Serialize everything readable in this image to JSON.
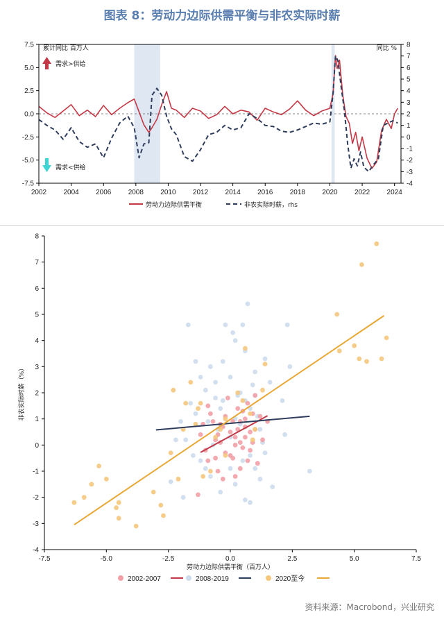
{
  "figure_title": "图表 8：劳动力边际供需平衡与非农实际时薪",
  "source": "资料来源：Macrobond，兴业研究",
  "colors": {
    "labor_balance": "#c43846",
    "real_wage": "#2f3d5c",
    "recession_shade": "#dfe7f3",
    "arrow_up": "#c43846",
    "arrow_down": "#3fd4d4",
    "s2002": "#f2a0a6",
    "s2008": "#cddcec",
    "s2020": "#f4c77c",
    "fit2002": "#c03848",
    "fit2008": "#2f3d5c",
    "fit2020": "#e8a838"
  },
  "chart_data": [
    {
      "type": "line",
      "left_axis_title": "累计同比 百万人",
      "right_axis_title": "同比 %",
      "annotation_up": "需求>供给",
      "annotation_down": "需求<供给",
      "ylim_left": [
        -7.5,
        7.5
      ],
      "yticks_left": [
        7.5,
        5.0,
        2.5,
        0.0,
        -2.5,
        -5.0,
        -7.5
      ],
      "ylim_right": [
        -4,
        8
      ],
      "yticks_right": [
        8,
        7,
        6,
        5,
        4,
        3,
        2,
        1,
        0,
        -1,
        -2,
        -3,
        -4
      ],
      "xlim": [
        2002,
        2024.4
      ],
      "xticks": [
        2002,
        2004,
        2006,
        2008,
        2010,
        2012,
        2014,
        2016,
        2018,
        2020,
        2022,
        2024
      ],
      "grid": false,
      "legend_position": "bottom",
      "shaded_periods": [
        [
          2007.9,
          2009.5
        ],
        [
          2020.1,
          2020.3
        ]
      ],
      "series": [
        {
          "name": "劳动力边际供需平衡",
          "axis": "left",
          "style": "solid",
          "x": [
            2002.0,
            2002.5,
            2003.0,
            2003.5,
            2004.0,
            2004.5,
            2005.0,
            2005.5,
            2006.0,
            2006.5,
            2007.0,
            2007.5,
            2007.9,
            2008.2,
            2008.5,
            2008.8,
            2009.0,
            2009.3,
            2009.6,
            2009.9,
            2010.2,
            2010.5,
            2011.0,
            2011.5,
            2012.0,
            2012.5,
            2013.0,
            2013.5,
            2014.0,
            2014.5,
            2015.0,
            2015.5,
            2016.0,
            2016.5,
            2017.0,
            2017.5,
            2018.0,
            2018.5,
            2019.0,
            2019.5,
            2020.0,
            2020.2,
            2020.35,
            2020.45,
            2020.6,
            2020.8,
            2021.0,
            2021.2,
            2021.4,
            2021.6,
            2021.8,
            2022.0,
            2022.3,
            2022.6,
            2022.9,
            2023.2,
            2023.5,
            2023.8,
            2024.0,
            2024.2
          ],
          "y": [
            0.8,
            0.1,
            -0.4,
            0.3,
            1.0,
            -0.2,
            0.4,
            -0.3,
            0.9,
            -0.1,
            0.6,
            1.2,
            1.6,
            0.2,
            -1.2,
            -2.0,
            -1.5,
            -0.6,
            1.0,
            2.4,
            0.6,
            0.4,
            -0.4,
            0.6,
            0.3,
            -0.5,
            -0.1,
            0.8,
            0.0,
            0.4,
            0.2,
            -0.7,
            0.6,
            0.2,
            -0.1,
            0.5,
            1.4,
            0.4,
            -0.2,
            0.3,
            0.6,
            2.2,
            6.3,
            4.9,
            5.8,
            2.0,
            -0.3,
            -1.0,
            -3.2,
            -2.0,
            -4.0,
            -2.5,
            -4.8,
            -5.9,
            -5.2,
            -1.8,
            -0.6,
            -1.6,
            0.0,
            0.6
          ]
        },
        {
          "name": "非农实际时薪，rhs",
          "axis": "right",
          "style": "dashed",
          "x": [
            2002.0,
            2002.5,
            2003.0,
            2003.5,
            2004.0,
            2004.5,
            2005.0,
            2005.5,
            2006.0,
            2006.5,
            2007.0,
            2007.5,
            2007.9,
            2008.2,
            2008.5,
            2008.8,
            2009.0,
            2009.3,
            2009.6,
            2009.9,
            2010.2,
            2010.5,
            2011.0,
            2011.5,
            2012.0,
            2012.5,
            2013.0,
            2013.5,
            2014.0,
            2014.5,
            2015.0,
            2015.5,
            2016.0,
            2016.5,
            2017.0,
            2017.5,
            2018.0,
            2018.5,
            2019.0,
            2019.5,
            2020.0,
            2020.2,
            2020.35,
            2020.5,
            2020.7,
            2020.9,
            2021.1,
            2021.3,
            2021.5,
            2021.7,
            2021.9,
            2022.1,
            2022.4,
            2022.7,
            2023.0,
            2023.3,
            2023.6,
            2023.9,
            2024.2
          ],
          "y": [
            1.5,
            1.0,
            0.6,
            -0.2,
            0.8,
            -0.4,
            -0.9,
            -0.6,
            -1.8,
            -0.1,
            1.2,
            1.8,
            0.8,
            -1.8,
            -0.6,
            -0.5,
            3.6,
            4.2,
            3.6,
            1.8,
            0.7,
            0.2,
            -1.7,
            -2.1,
            -1.1,
            0.2,
            0.4,
            1.0,
            0.6,
            0.8,
            2.0,
            1.6,
            1.0,
            0.9,
            0.5,
            0.4,
            0.6,
            0.9,
            1.2,
            1.1,
            1.3,
            3.8,
            7.0,
            6.6,
            4.3,
            2.3,
            -0.6,
            -2.7,
            -1.9,
            -2.5,
            -1.3,
            -2.6,
            -3.0,
            -2.4,
            -1.9,
            1.0,
            1.2,
            1.4,
            1.2
          ]
        }
      ]
    },
    {
      "type": "scatter",
      "xlabel": "劳动力边际供需平衡（百万人）",
      "ylabel": "非农实际时薪（%）",
      "xlim": [
        -7.5,
        7.5
      ],
      "ylim": [
        -4,
        8
      ],
      "xticks": [
        -7.5,
        -5.0,
        -2.5,
        0.0,
        2.5,
        5.0,
        7.5
      ],
      "yticks": [
        -4,
        -3,
        -2,
        -1,
        0,
        1,
        2,
        3,
        4,
        5,
        6,
        7,
        8
      ],
      "grid": false,
      "legend_position": "bottom",
      "series": [
        {
          "name": "2002-2007",
          "points": [
            [
              -1.2,
              0.4
            ],
            [
              -0.9,
              -0.6
            ],
            [
              -0.6,
              0.2
            ],
            [
              -0.4,
              0.8
            ],
            [
              -0.2,
              -0.3
            ],
            [
              0.0,
              0.5
            ],
            [
              0.2,
              0.0
            ],
            [
              0.4,
              0.9
            ],
            [
              0.6,
              0.3
            ],
            [
              0.8,
              -0.2
            ],
            [
              1.0,
              0.6
            ],
            [
              1.2,
              1.1
            ],
            [
              -0.8,
              1.2
            ],
            [
              -0.5,
              -1.0
            ],
            [
              -0.3,
              0.7
            ],
            [
              0.1,
              -0.5
            ],
            [
              0.3,
              1.4
            ],
            [
              0.5,
              -0.1
            ],
            [
              0.7,
              1.6
            ],
            [
              0.9,
              0.1
            ],
            [
              1.1,
              -0.7
            ],
            [
              -1.0,
              -0.2
            ],
            [
              -0.7,
              0.9
            ],
            [
              -0.1,
              1.8
            ],
            [
              0.2,
              0.3
            ],
            [
              0.4,
              -0.9
            ],
            [
              0.6,
              1.0
            ],
            [
              0.8,
              0.5
            ],
            [
              1.0,
              1.9
            ],
            [
              -0.4,
              0.1
            ],
            [
              -0.2,
              1.1
            ],
            [
              0.0,
              -0.4
            ],
            [
              0.3,
              0.6
            ],
            [
              0.5,
              1.3
            ],
            [
              -0.6,
              -0.5
            ],
            [
              -1.1,
              0.8
            ],
            [
              0.7,
              -0.6
            ],
            [
              1.3,
              0.2
            ],
            [
              -0.3,
              -1.3
            ],
            [
              0.1,
              0.9
            ],
            [
              0.9,
              1.2
            ],
            [
              -0.9,
              1.5
            ],
            [
              0.4,
              0.1
            ],
            [
              -1.3,
              -1.9
            ],
            [
              1.5,
              0.9
            ],
            [
              0.2,
              -1.2
            ],
            [
              -0.5,
              0.4
            ],
            [
              0.6,
              0.7
            ]
          ]
        },
        {
          "name": "2008-2019",
          "points": [
            [
              -1.4,
              1.2
            ],
            [
              -1.0,
              2.1
            ],
            [
              -0.6,
              1.8
            ],
            [
              -0.3,
              3.2
            ],
            [
              0.0,
              2.6
            ],
            [
              0.4,
              2.0
            ],
            [
              0.8,
              1.4
            ],
            [
              1.2,
              0.6
            ],
            [
              -1.8,
              0.2
            ],
            [
              -1.2,
              -0.6
            ],
            [
              -0.8,
              -1.2
            ],
            [
              -0.4,
              -1.8
            ],
            [
              0.2,
              -1.5
            ],
            [
              0.6,
              -2.1
            ],
            [
              1.0,
              -0.9
            ],
            [
              1.4,
              -0.3
            ],
            [
              -2.4,
              -1.4
            ],
            [
              -2.0,
              0.9
            ],
            [
              -1.6,
              1.6
            ],
            [
              -0.2,
              4.6
            ],
            [
              0.2,
              4.0
            ],
            [
              0.6,
              3.6
            ],
            [
              1.0,
              2.8
            ],
            [
              1.4,
              3.3
            ],
            [
              -0.5,
              0.6
            ],
            [
              0.0,
              0.3
            ],
            [
              0.4,
              0.8
            ],
            [
              0.8,
              -0.4
            ],
            [
              -1.2,
              2.6
            ],
            [
              -0.8,
              3.0
            ],
            [
              -0.4,
              1.4
            ],
            [
              0.2,
              1.0
            ],
            [
              0.6,
              1.7
            ],
            [
              1.0,
              1.9
            ],
            [
              1.6,
              2.4
            ],
            [
              2.1,
              1.7
            ],
            [
              2.3,
              4.6
            ],
            [
              2.2,
              0.4
            ],
            [
              -1.7,
              4.6
            ],
            [
              0.7,
              5.4
            ],
            [
              -0.7,
              0.0
            ],
            [
              0.0,
              -0.9
            ],
            [
              0.5,
              -0.6
            ],
            [
              1.2,
              -1.3
            ],
            [
              -1.5,
              -0.4
            ],
            [
              -1.9,
              -2.0
            ],
            [
              -0.9,
              0.9
            ],
            [
              0.3,
              1.9
            ],
            [
              0.9,
              2.3
            ],
            [
              1.7,
              -1.6
            ],
            [
              3.2,
              -1.0
            ],
            [
              0.8,
              -2.2
            ],
            [
              -0.3,
              1.7
            ],
            [
              1.3,
              0.1
            ],
            [
              -2.2,
              0.2
            ],
            [
              -1.4,
              3.2
            ],
            [
              0.1,
              4.3
            ],
            [
              2.4,
              3.0
            ],
            [
              -0.6,
              2.4
            ],
            [
              0.5,
              4.6
            ],
            [
              1.1,
              1.1
            ],
            [
              -1.0,
              -0.9
            ]
          ]
        },
        {
          "name": "2020至今",
          "points": [
            [
              -6.3,
              -2.2
            ],
            [
              -5.9,
              -2.0
            ],
            [
              -5.6,
              -1.5
            ],
            [
              -5.3,
              -0.8
            ],
            [
              -5.0,
              -1.3
            ],
            [
              -4.6,
              -2.4
            ],
            [
              -4.5,
              -2.8
            ],
            [
              -4.5,
              -2.2
            ],
            [
              -3.8,
              -3.1
            ],
            [
              -3.1,
              -1.8
            ],
            [
              -2.8,
              -2.3
            ],
            [
              -2.7,
              -2.7
            ],
            [
              -2.4,
              -0.3
            ],
            [
              -2.3,
              2.1
            ],
            [
              -2.1,
              -1.3
            ],
            [
              -1.8,
              1.6
            ],
            [
              -1.6,
              2.4
            ],
            [
              -1.4,
              0.8
            ],
            [
              -1.3,
              1.4
            ],
            [
              -1.2,
              1.6
            ],
            [
              -1.1,
              -1.2
            ],
            [
              -0.8,
              -1.0
            ],
            [
              -0.4,
              0.6
            ],
            [
              -0.2,
              1.0
            ],
            [
              0.3,
              2.0
            ],
            [
              0.5,
              1.7
            ],
            [
              0.8,
              1.2
            ],
            [
              1.0,
              0.6
            ],
            [
              1.3,
              2.1
            ],
            [
              1.4,
              3.1
            ],
            [
              0.6,
              3.7
            ],
            [
              4.3,
              5.0
            ],
            [
              4.4,
              3.6
            ],
            [
              5.0,
              3.8
            ],
            [
              5.2,
              3.3
            ],
            [
              5.3,
              6.9
            ],
            [
              5.5,
              3.2
            ],
            [
              5.9,
              7.7
            ],
            [
              6.1,
              3.3
            ],
            [
              6.3,
              4.1
            ],
            [
              -0.6,
              0.3
            ],
            [
              -0.2,
              -0.4
            ],
            [
              -1.9,
              0.6
            ],
            [
              0.9,
              0.2
            ]
          ]
        }
      ],
      "fit_lines": [
        {
          "series": "2002-2007",
          "x": [
            -1.2,
            1.5
          ],
          "y": [
            -0.28,
            1.12
          ]
        },
        {
          "series": "2008-2019",
          "x": [
            -3.0,
            3.2
          ],
          "y": [
            0.58,
            1.1
          ]
        },
        {
          "series": "2020至今",
          "x": [
            -6.3,
            6.2
          ],
          "y": [
            -3.05,
            4.95
          ]
        }
      ]
    }
  ]
}
